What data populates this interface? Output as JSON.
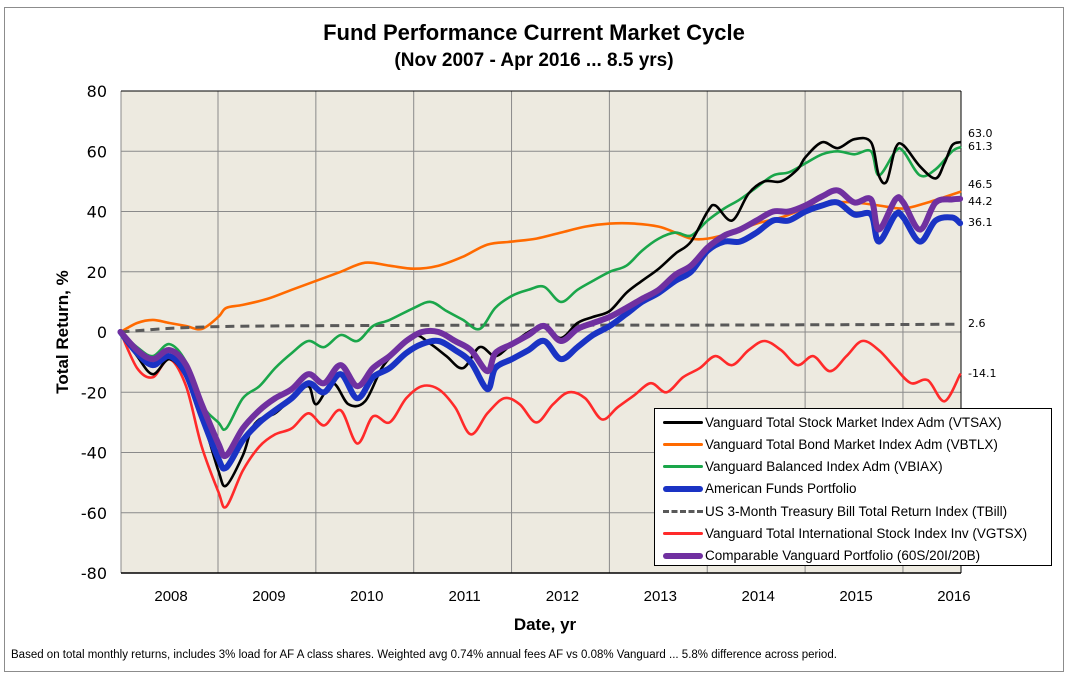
{
  "chart_data": {
    "type": "line",
    "title": "Fund Performance Current Market Cycle",
    "subtitle": "(Nov 2007 - Apr 2016 ... 8.5 yrs)",
    "xlabel": "Date, yr",
    "ylabel": "Total Return, %",
    "ylim": [
      -80,
      80
    ],
    "yticks": [
      80,
      60,
      40,
      20,
      0,
      -20,
      -40,
      -60,
      -80
    ],
    "xticks": [
      "2008",
      "2009",
      "2010",
      "2011",
      "2012",
      "2013",
      "2014",
      "2015",
      "2016"
    ],
    "x_units": "years since Nov 2007",
    "xlim": [
      0,
      8.58
    ],
    "grid": true,
    "legend_position": "bottom-right",
    "footnote": "Based on total monthly returns, includes 3% load for AF A class shares. Weighted avg 0.74% annual fees AF vs 0.08% Vanguard ... 5.8% difference across period.",
    "series": [
      {
        "name": "Vanguard Total Stock Market Index Adm (VTSAX)",
        "color": "#000000",
        "style": "solid",
        "weight": "normal",
        "end_label": "63.0",
        "x": [
          0,
          0.17,
          0.33,
          0.5,
          0.67,
          0.83,
          1.0,
          1.08,
          1.25,
          1.33,
          1.42,
          1.58,
          1.75,
          1.92,
          2.0,
          2.17,
          2.33,
          2.5,
          2.67,
          2.83,
          3.0,
          3.17,
          3.33,
          3.5,
          3.67,
          3.83,
          4.0,
          4.17,
          4.33,
          4.5,
          4.67,
          4.83,
          5.0,
          5.17,
          5.33,
          5.5,
          5.67,
          5.83,
          6.0,
          6.08,
          6.25,
          6.42,
          6.58,
          6.75,
          6.92,
          7.0,
          7.17,
          7.33,
          7.5,
          7.67,
          7.75,
          7.83,
          7.92,
          8.0,
          8.17,
          8.33,
          8.42,
          8.5,
          8.58
        ],
        "values": [
          0,
          -8,
          -14,
          -9,
          -15,
          -28,
          -46,
          -51,
          -41,
          -33,
          -29,
          -27,
          -22,
          -18,
          -24,
          -17,
          -24,
          -23,
          -12,
          -6,
          -1,
          -4,
          -8,
          -12,
          -5,
          -8,
          -4,
          0,
          2,
          -2,
          3,
          5,
          7,
          13,
          17,
          21,
          26,
          30,
          40,
          42,
          37,
          46,
          50,
          50,
          54,
          58,
          63,
          61,
          64,
          63,
          52,
          50,
          61,
          62,
          55,
          51,
          56,
          62,
          63
        ]
      },
      {
        "name": "Vanguard Total Bond Market Index Adm (VBTLX)",
        "color": "#ff6a00",
        "style": "solid",
        "weight": "normal",
        "end_label": "46.5",
        "x": [
          0,
          0.17,
          0.33,
          0.5,
          0.67,
          0.83,
          1.0,
          1.08,
          1.25,
          1.5,
          1.75,
          2.0,
          2.25,
          2.5,
          2.75,
          3.0,
          3.25,
          3.5,
          3.75,
          4.0,
          4.25,
          4.5,
          4.75,
          5.0,
          5.25,
          5.5,
          5.67,
          5.83,
          6.0,
          6.25,
          6.5,
          6.75,
          7.0,
          7.25,
          7.5,
          7.75,
          8.0,
          8.25,
          8.58
        ],
        "values": [
          0,
          3,
          4,
          3,
          2,
          1,
          5,
          8,
          9,
          11,
          14,
          17,
          20,
          23,
          22,
          21,
          22,
          25,
          29,
          30,
          31,
          33,
          35,
          36,
          36,
          35,
          33,
          31,
          31,
          33,
          36,
          38,
          41,
          43,
          43,
          42,
          41,
          43,
          46.5
        ]
      },
      {
        "name": "Vanguard Balanced Index Adm (VBIAX)",
        "color": "#1aa64a",
        "style": "solid",
        "weight": "normal",
        "end_label": "61.3",
        "x": [
          0,
          0.17,
          0.33,
          0.5,
          0.67,
          0.83,
          1.0,
          1.08,
          1.25,
          1.42,
          1.58,
          1.75,
          1.92,
          2.08,
          2.25,
          2.42,
          2.58,
          2.75,
          3.0,
          3.17,
          3.33,
          3.5,
          3.67,
          3.83,
          4.0,
          4.17,
          4.33,
          4.5,
          4.67,
          4.83,
          5.0,
          5.17,
          5.33,
          5.5,
          5.67,
          5.83,
          6.0,
          6.17,
          6.33,
          6.5,
          6.67,
          6.83,
          7.0,
          7.17,
          7.33,
          7.5,
          7.67,
          7.75,
          7.92,
          8.0,
          8.17,
          8.33,
          8.5,
          8.58
        ],
        "values": [
          0,
          -5,
          -8,
          -4,
          -10,
          -24,
          -30,
          -32,
          -22,
          -18,
          -12,
          -7,
          -3,
          -5,
          -1,
          -3,
          2,
          4,
          8,
          10,
          7,
          4,
          1,
          8,
          12,
          14,
          15,
          10,
          14,
          17,
          20,
          22,
          27,
          31,
          33,
          32,
          37,
          41,
          44,
          48,
          52,
          53,
          56,
          59,
          60,
          59,
          60,
          52,
          60,
          60,
          52,
          54,
          60,
          61.3
        ]
      },
      {
        "name": "American Funds Portfolio",
        "color": "#1a33c4",
        "style": "solid",
        "weight": "thick",
        "end_label": "36.1",
        "x": [
          0,
          0.17,
          0.33,
          0.5,
          0.67,
          0.83,
          1.0,
          1.08,
          1.25,
          1.42,
          1.58,
          1.75,
          1.92,
          2.08,
          2.25,
          2.42,
          2.58,
          2.75,
          2.92,
          3.08,
          3.25,
          3.42,
          3.58,
          3.75,
          3.83,
          4.0,
          4.17,
          4.33,
          4.5,
          4.67,
          4.83,
          5.0,
          5.17,
          5.33,
          5.5,
          5.67,
          5.83,
          6.0,
          6.17,
          6.33,
          6.5,
          6.67,
          6.83,
          7.0,
          7.17,
          7.33,
          7.5,
          7.67,
          7.75,
          7.92,
          8.0,
          8.17,
          8.33,
          8.5,
          8.58
        ],
        "values": [
          0,
          -7,
          -11,
          -8,
          -14,
          -28,
          -42,
          -45,
          -36,
          -30,
          -26,
          -22,
          -17,
          -20,
          -14,
          -22,
          -15,
          -12,
          -7,
          -4,
          -3,
          -6,
          -10,
          -19,
          -12,
          -9,
          -6,
          -3,
          -9,
          -5,
          -1,
          2,
          6,
          10,
          13,
          17,
          20,
          27,
          30,
          30,
          33,
          37,
          37,
          40,
          42,
          43,
          39,
          39,
          30,
          39,
          38,
          30,
          37,
          38,
          36.1
        ]
      },
      {
        "name": "US 3-Month Treasury Bill Total Return Index (TBill)",
        "color": "#595959",
        "style": "dashed",
        "weight": "normal",
        "end_label": "2.6",
        "x": [
          0,
          0.5,
          1.0,
          1.5,
          2.0,
          3.0,
          4.0,
          5.0,
          6.0,
          7.0,
          8.0,
          8.58
        ],
        "values": [
          0,
          1.2,
          1.8,
          2.0,
          2.1,
          2.2,
          2.3,
          2.3,
          2.3,
          2.4,
          2.5,
          2.6
        ]
      },
      {
        "name": "Vanguard Total International Stock Index Inv (VGTSX)",
        "color": "#ff2a2a",
        "style": "solid",
        "weight": "normal",
        "end_label": "-14.1",
        "x": [
          0,
          0.17,
          0.33,
          0.5,
          0.67,
          0.83,
          1.0,
          1.08,
          1.25,
          1.42,
          1.58,
          1.75,
          1.92,
          2.08,
          2.25,
          2.42,
          2.58,
          2.75,
          2.92,
          3.08,
          3.25,
          3.42,
          3.58,
          3.75,
          3.92,
          4.08,
          4.25,
          4.42,
          4.58,
          4.75,
          4.92,
          5.08,
          5.25,
          5.42,
          5.58,
          5.75,
          5.92,
          6.08,
          6.25,
          6.42,
          6.58,
          6.75,
          6.92,
          7.08,
          7.25,
          7.42,
          7.58,
          7.75,
          7.92,
          8.08,
          8.25,
          8.42,
          8.58
        ],
        "values": [
          0,
          -12,
          -15,
          -9,
          -18,
          -38,
          -53,
          -58,
          -46,
          -38,
          -34,
          -32,
          -27,
          -31,
          -26,
          -37,
          -28,
          -30,
          -22,
          -18,
          -19,
          -25,
          -34,
          -27,
          -22,
          -24,
          -30,
          -24,
          -20,
          -22,
          -29,
          -25,
          -21,
          -17,
          -20,
          -15,
          -12,
          -8,
          -11,
          -6,
          -3,
          -6,
          -11,
          -8,
          -13,
          -8,
          -3,
          -6,
          -12,
          -17,
          -16,
          -23,
          -14.1
        ]
      },
      {
        "name": "Comparable Vanguard Portfolio (60S/20I/20B)",
        "color": "#7030a0",
        "style": "solid",
        "weight": "thick",
        "end_label": "44.2",
        "x": [
          0,
          0.17,
          0.33,
          0.5,
          0.67,
          0.83,
          1.0,
          1.08,
          1.25,
          1.42,
          1.58,
          1.75,
          1.92,
          2.08,
          2.25,
          2.42,
          2.58,
          2.75,
          2.92,
          3.08,
          3.25,
          3.42,
          3.58,
          3.75,
          3.83,
          4.0,
          4.17,
          4.33,
          4.5,
          4.67,
          4.83,
          5.0,
          5.17,
          5.33,
          5.5,
          5.67,
          5.83,
          6.0,
          6.17,
          6.33,
          6.5,
          6.67,
          6.83,
          7.0,
          7.17,
          7.33,
          7.5,
          7.67,
          7.75,
          7.92,
          8.0,
          8.17,
          8.33,
          8.5,
          8.58
        ],
        "values": [
          0,
          -6,
          -9,
          -6,
          -11,
          -24,
          -37,
          -41,
          -32,
          -26,
          -22,
          -19,
          -14,
          -17,
          -11,
          -18,
          -12,
          -8,
          -3,
          0,
          0,
          -3,
          -6,
          -13,
          -7,
          -4,
          -1,
          2,
          -3,
          1,
          3,
          5,
          8,
          11,
          14,
          19,
          22,
          28,
          32,
          34,
          37,
          40,
          40,
          42,
          45,
          47,
          43,
          44,
          34,
          44,
          43,
          34,
          43,
          44,
          44.2
        ]
      }
    ]
  }
}
